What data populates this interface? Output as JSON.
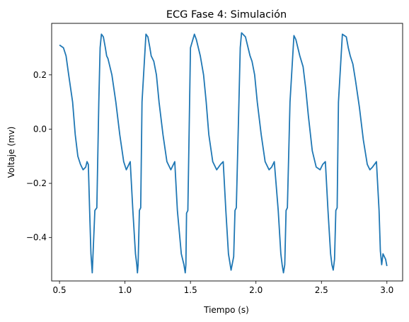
{
  "chart_data": {
    "type": "line",
    "title": "ECG Fase 4: Simulación",
    "xlabel": "Tiempo (s)",
    "ylabel": "Voltaje (mv)",
    "xlim": [
      0.44,
      3.12
    ],
    "ylim": [
      -0.56,
      0.39
    ],
    "xticks": [
      0.5,
      1.0,
      1.5,
      2.0,
      2.5,
      3.0
    ],
    "xtick_labels": [
      "0.5",
      "1.0",
      "1.5",
      "2.0",
      "2.5",
      "3.0"
    ],
    "yticks": [
      0.2,
      0.0,
      -0.2,
      -0.4
    ],
    "ytick_labels": [
      "0.2",
      "0.0",
      "−0.2",
      "−0.4"
    ],
    "grid": false,
    "series": [
      {
        "color": "#1f77b4",
        "x": [
          0.5,
          0.53,
          0.55,
          0.57,
          0.6,
          0.62,
          0.64,
          0.66,
          0.68,
          0.7,
          0.71,
          0.72,
          0.73,
          0.74,
          0.75,
          0.77,
          0.785,
          0.8,
          0.81,
          0.82,
          0.835,
          0.85,
          0.86,
          0.87,
          0.9,
          0.93,
          0.96,
          0.99,
          1.01,
          1.02,
          1.04,
          1.06,
          1.08,
          1.09,
          1.095,
          1.1,
          1.11,
          1.12,
          1.13,
          1.16,
          1.175,
          1.19,
          1.2,
          1.22,
          1.24,
          1.26,
          1.29,
          1.32,
          1.35,
          1.37,
          1.38,
          1.4,
          1.43,
          1.45,
          1.46,
          1.465,
          1.47,
          1.48,
          1.49,
          1.5,
          1.53,
          1.545,
          1.56,
          1.575,
          1.6,
          1.62,
          1.64,
          1.67,
          1.7,
          1.73,
          1.75,
          1.77,
          1.79,
          1.81,
          1.83,
          1.84,
          1.85,
          1.87,
          1.88,
          1.89,
          1.92,
          1.94,
          1.955,
          1.97,
          1.99,
          2.01,
          2.04,
          2.07,
          2.1,
          2.12,
          2.14,
          2.17,
          2.19,
          2.2,
          2.21,
          2.22,
          2.23,
          2.24,
          2.26,
          2.29,
          2.305,
          2.32,
          2.335,
          2.36,
          2.38,
          2.4,
          2.43,
          2.46,
          2.49,
          2.51,
          2.53,
          2.55,
          2.57,
          2.58,
          2.59,
          2.6,
          2.61,
          2.62,
          2.63,
          2.66,
          2.69,
          2.705,
          2.72,
          2.74,
          2.76,
          2.79,
          2.82,
          2.85,
          2.87,
          2.89,
          2.92,
          2.94,
          2.95,
          2.96,
          2.97,
          2.98,
          2.99,
          3.0
        ],
        "y": [
          0.31,
          0.3,
          0.27,
          0.2,
          0.1,
          -0.02,
          -0.1,
          -0.13,
          -0.15,
          -0.14,
          -0.12,
          -0.13,
          -0.3,
          -0.46,
          -0.53,
          -0.3,
          -0.29,
          0.1,
          0.3,
          0.35,
          0.34,
          0.3,
          0.27,
          0.26,
          0.2,
          0.1,
          -0.02,
          -0.12,
          -0.15,
          -0.14,
          -0.12,
          -0.3,
          -0.46,
          -0.5,
          -0.53,
          -0.5,
          -0.3,
          -0.29,
          0.1,
          0.35,
          0.34,
          0.3,
          0.27,
          0.25,
          0.2,
          0.1,
          -0.02,
          -0.12,
          -0.15,
          -0.13,
          -0.12,
          -0.3,
          -0.46,
          -0.5,
          -0.53,
          -0.5,
          -0.31,
          -0.3,
          0.0,
          0.3,
          0.35,
          0.33,
          0.3,
          0.27,
          0.2,
          0.1,
          -0.02,
          -0.12,
          -0.15,
          -0.13,
          -0.12,
          -0.3,
          -0.46,
          -0.52,
          -0.47,
          -0.3,
          -0.29,
          0.1,
          0.3,
          0.355,
          0.34,
          0.3,
          0.27,
          0.25,
          0.2,
          0.1,
          -0.02,
          -0.12,
          -0.15,
          -0.14,
          -0.12,
          -0.3,
          -0.46,
          -0.5,
          -0.53,
          -0.5,
          -0.3,
          -0.29,
          0.1,
          0.345,
          0.33,
          0.3,
          0.27,
          0.23,
          0.15,
          0.05,
          -0.08,
          -0.14,
          -0.15,
          -0.13,
          -0.12,
          -0.3,
          -0.46,
          -0.5,
          -0.52,
          -0.48,
          -0.3,
          -0.29,
          0.1,
          0.35,
          0.34,
          0.3,
          0.27,
          0.24,
          0.18,
          0.08,
          -0.04,
          -0.13,
          -0.15,
          -0.14,
          -0.12,
          -0.3,
          -0.45,
          -0.5,
          -0.46,
          -0.47,
          -0.48,
          -0.505
        ]
      }
    ]
  }
}
